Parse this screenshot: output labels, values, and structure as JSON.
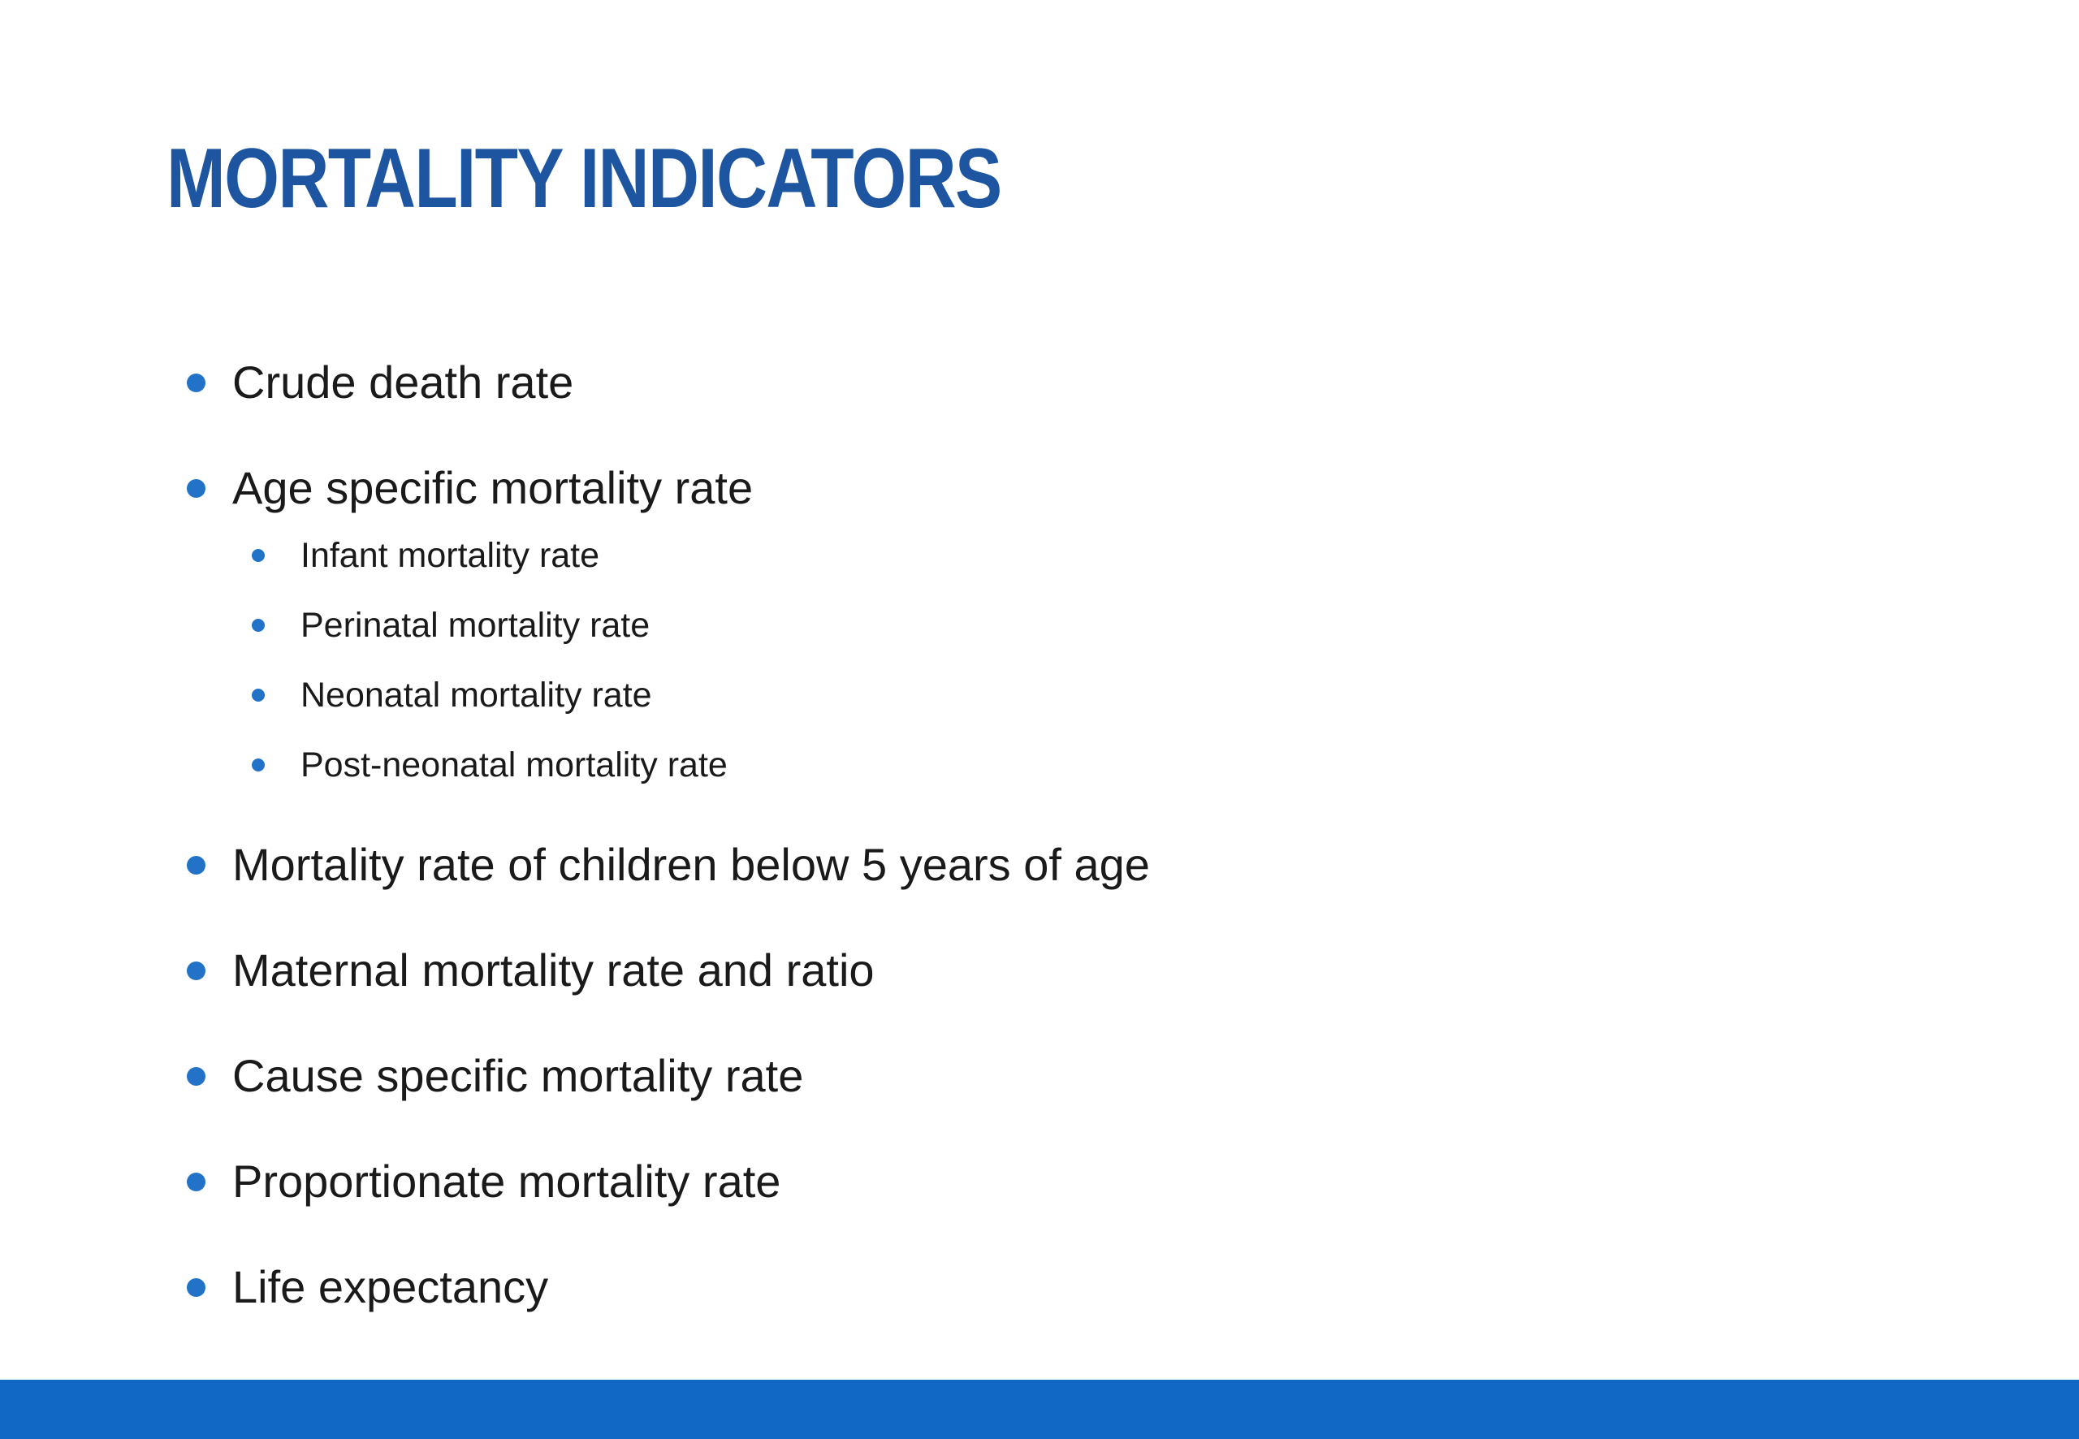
{
  "slide": {
    "title": "MORTALITY INDICATORS",
    "colors": {
      "title": "#1E55A0",
      "bullet_dot": "#2273C8",
      "body_text": "#1A1A1A",
      "footer_bar": "#1169C5",
      "background": "#FFFFFF"
    },
    "bullets": [
      {
        "text": "Crude death rate",
        "children": []
      },
      {
        "text": "Age specific mortality rate",
        "children": [
          "Infant mortality rate",
          "Perinatal mortality rate",
          "Neonatal mortality rate",
          "Post-neonatal mortality rate"
        ]
      },
      {
        "text": "Mortality rate of children below 5 years of age",
        "children": []
      },
      {
        "text": "Maternal mortality rate and ratio",
        "children": []
      },
      {
        "text": "Cause specific mortality rate",
        "children": []
      },
      {
        "text": "Proportionate mortality rate",
        "children": []
      },
      {
        "text": "Life expectancy",
        "children": []
      }
    ]
  }
}
